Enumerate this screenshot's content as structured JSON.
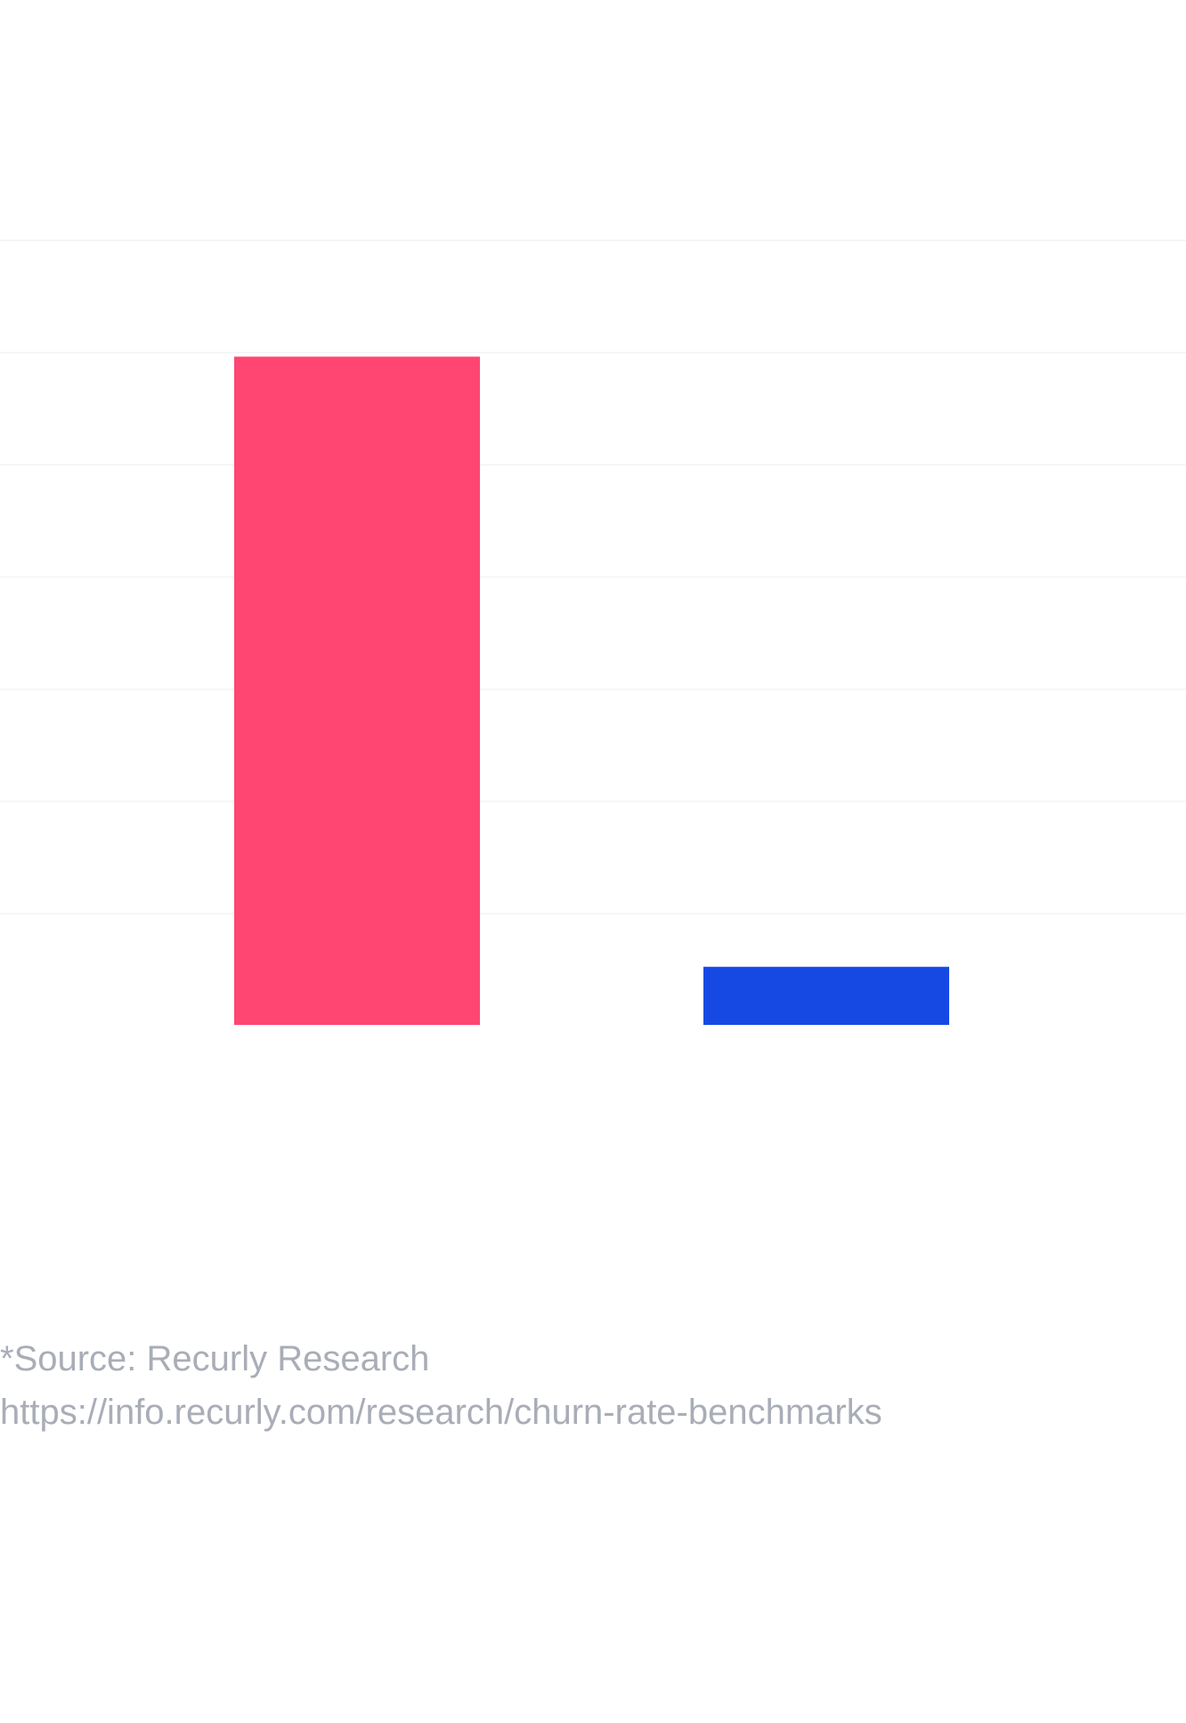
{
  "chart_data": {
    "type": "bar",
    "categories": [
      "",
      ""
    ],
    "values": [
      11.5,
      1
    ],
    "colors": [
      "#ff4672",
      "#1649e4"
    ],
    "ylim": [
      0,
      13.5
    ],
    "grid": true,
    "title": "",
    "xlabel": "",
    "ylabel": ""
  },
  "footnote": {
    "source": "*Source: Recurly Research",
    "url": "https://info.recurly.com/research/churn-rate-benchmarks"
  }
}
